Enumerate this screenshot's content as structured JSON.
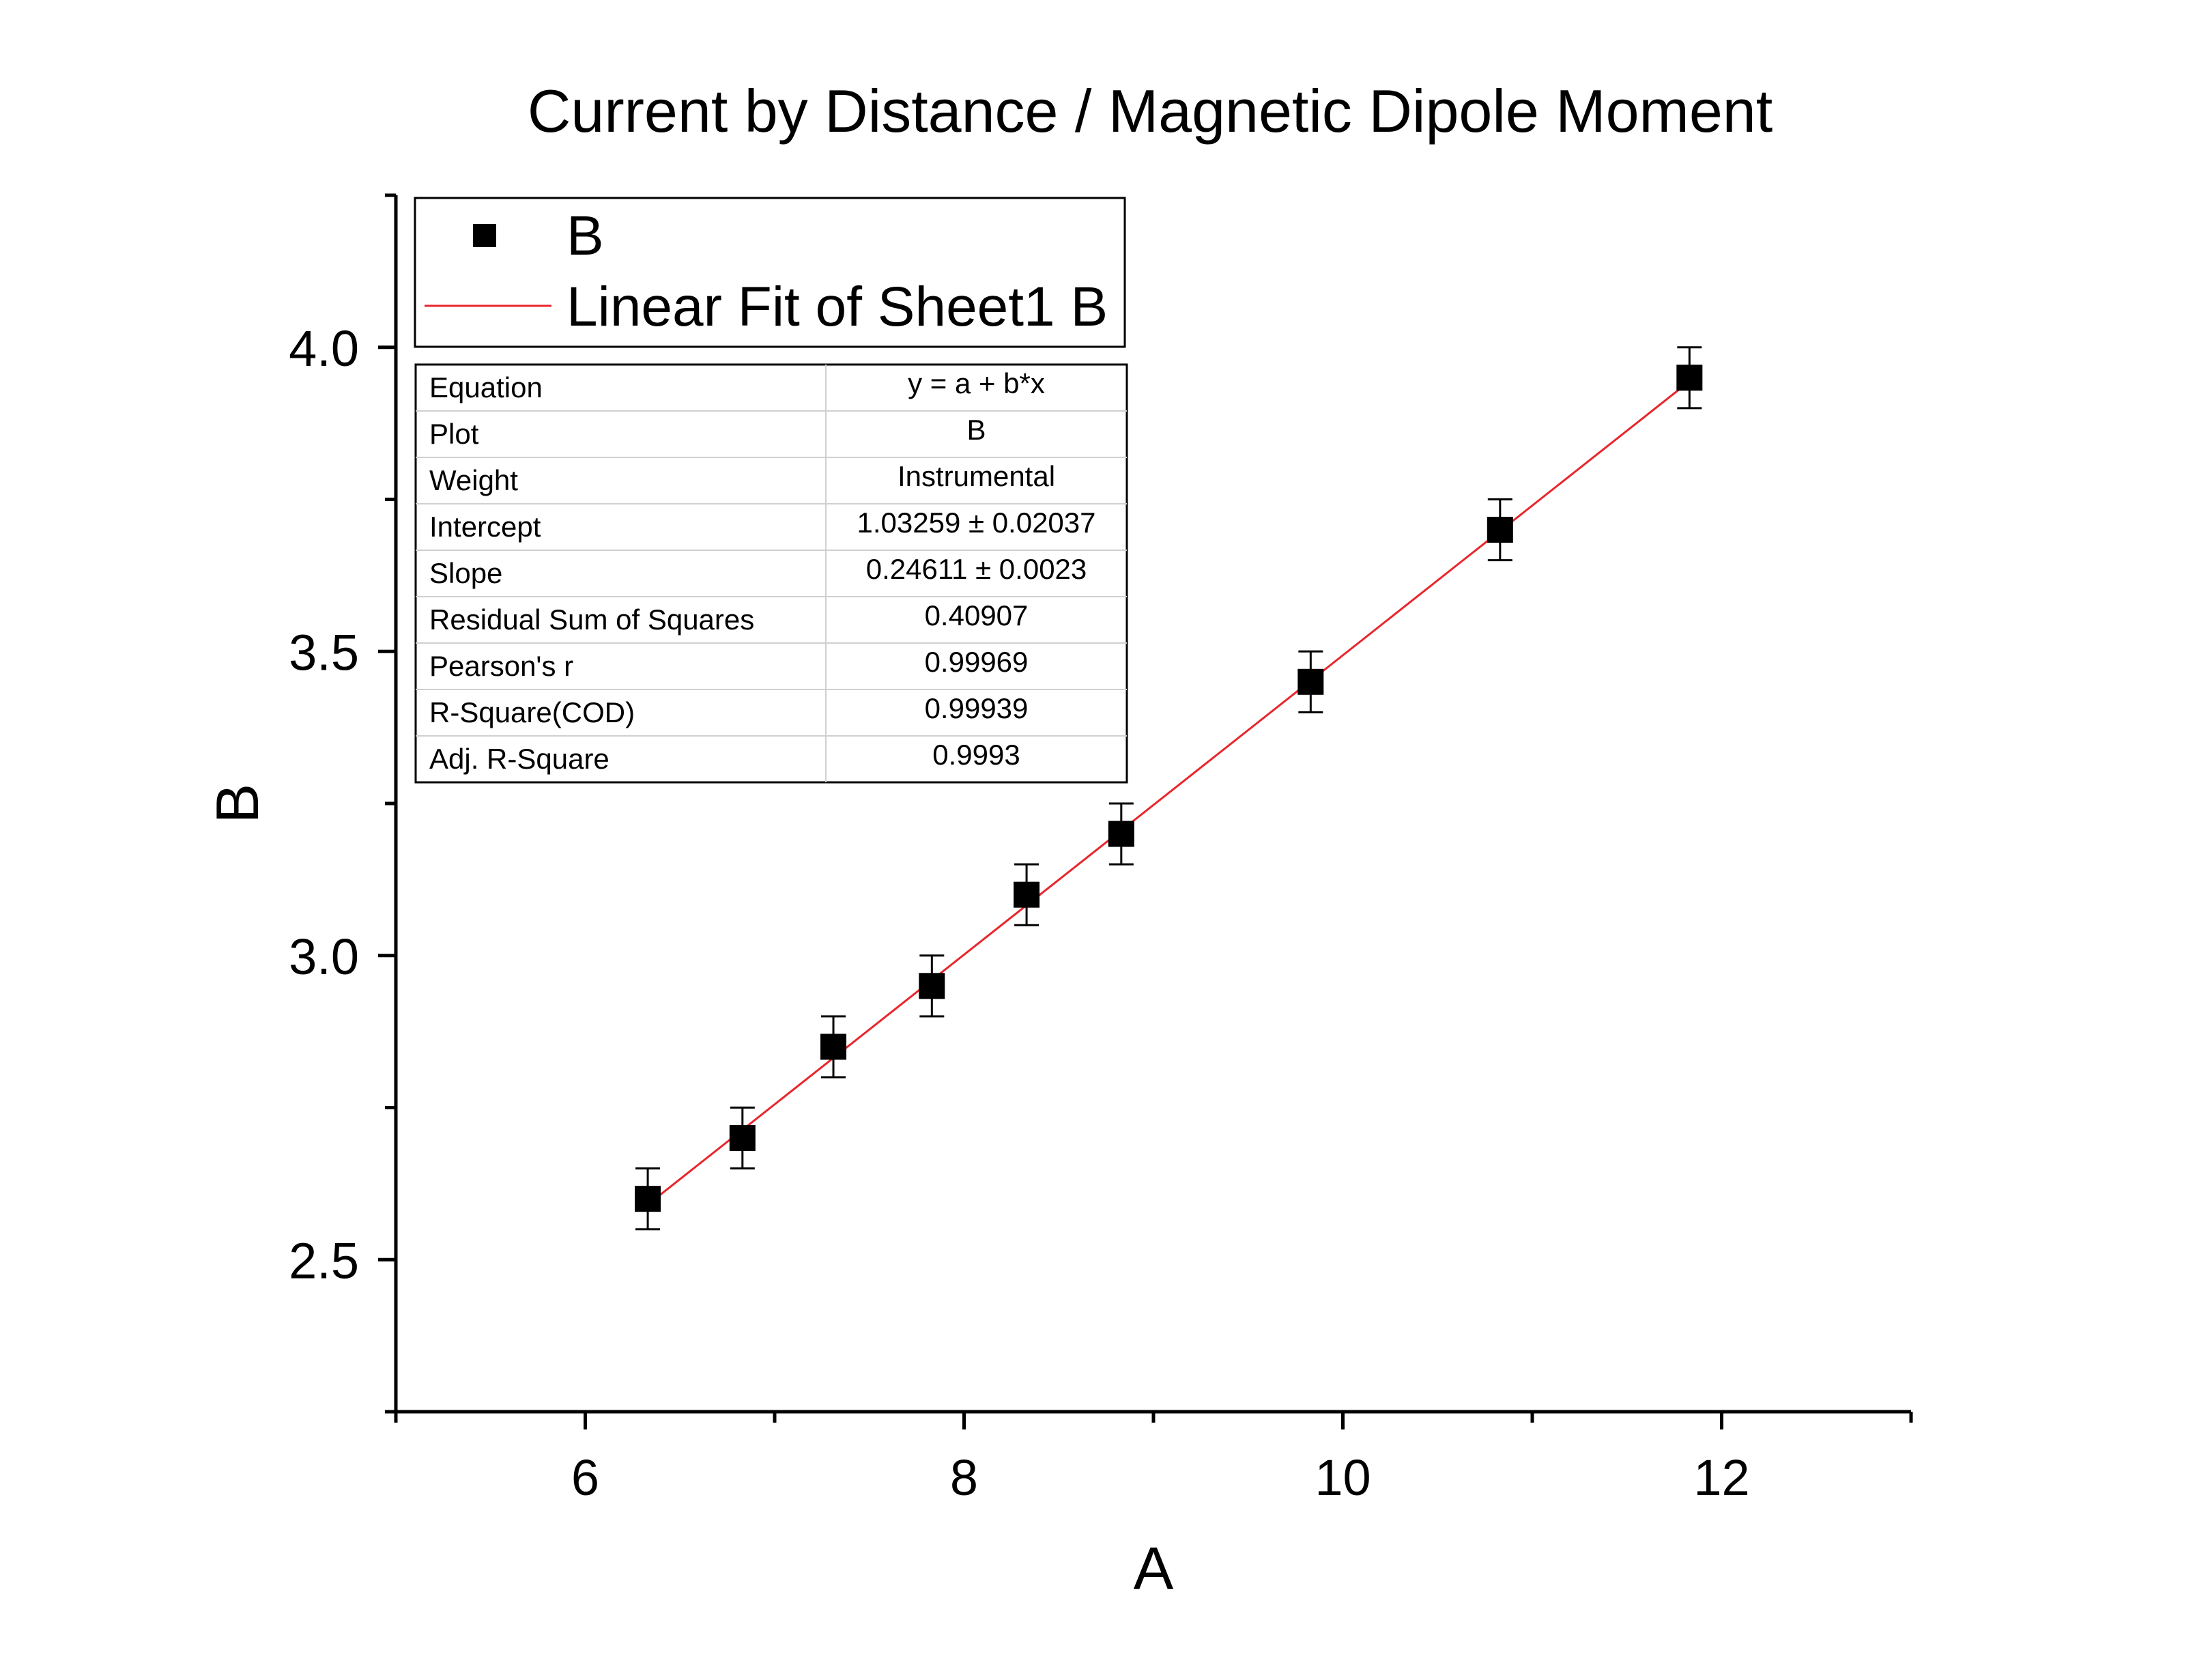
{
  "chart_data": {
    "type": "scatter",
    "title": "Current by Distance / Magnetic Dipole Moment",
    "xlabel": "A",
    "ylabel": "B",
    "xlim": [
      5,
      13
    ],
    "ylim": [
      2.25,
      4.25
    ],
    "x_ticks": [
      6,
      8,
      10,
      12
    ],
    "x_tick_labels": [
      "6",
      "8",
      "10",
      "12"
    ],
    "y_ticks": [
      2.5,
      3.0,
      3.5,
      4.0
    ],
    "y_tick_labels": [
      "2.5",
      "3.0",
      "3.5",
      "4.0"
    ],
    "grid": false,
    "legend_position": "top-left",
    "series": [
      {
        "name": "B",
        "marker": "square",
        "color": "#000000",
        "x": [
          6.33,
          6.83,
          7.31,
          7.83,
          8.33,
          8.83,
          9.83,
          10.83,
          11.83
        ],
        "y": [
          2.6,
          2.7,
          2.85,
          2.95,
          3.1,
          3.2,
          3.45,
          3.7,
          3.95
        ],
        "error": [
          0.05,
          0.05,
          0.05,
          0.05,
          0.05,
          0.05,
          0.05,
          0.05,
          0.05
        ]
      }
    ],
    "fit": {
      "name": "Linear Fit of Sheet1 B",
      "color": "#e8262b",
      "intercept": 1.03259,
      "slope": 0.24611,
      "x_range": [
        6.33,
        11.83
      ]
    },
    "legend": [
      {
        "label": "B",
        "type": "marker"
      },
      {
        "label": "Linear Fit of Sheet1 B",
        "type": "line"
      }
    ],
    "stats_table": [
      {
        "label": "Equation",
        "value": "y = a + b*x"
      },
      {
        "label": "Plot",
        "value": "B"
      },
      {
        "label": "Weight",
        "value": "Instrumental"
      },
      {
        "label": "Intercept",
        "value": "1.03259 ± 0.02037"
      },
      {
        "label": "Slope",
        "value": "0.24611 ± 0.0023"
      },
      {
        "label": "Residual Sum of Squares",
        "value": "0.40907"
      },
      {
        "label": "Pearson's r",
        "value": "0.99969"
      },
      {
        "label": "R-Square(COD)",
        "value": "0.99939"
      },
      {
        "label": "Adj. R-Square",
        "value": "0.9993"
      }
    ]
  }
}
